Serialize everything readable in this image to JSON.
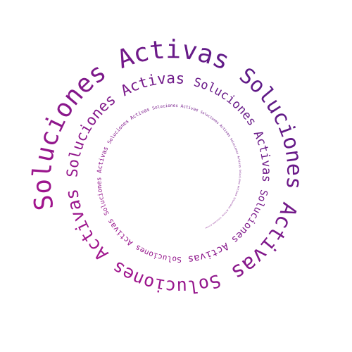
{
  "logo": {
    "phrase": "Soluciones Activas",
    "repeated_words": [
      "Soluciones",
      "Activas"
    ]
  },
  "colors": {
    "start": "#b7138f",
    "end": "#4c1d86",
    "background": "#ffffff"
  }
}
